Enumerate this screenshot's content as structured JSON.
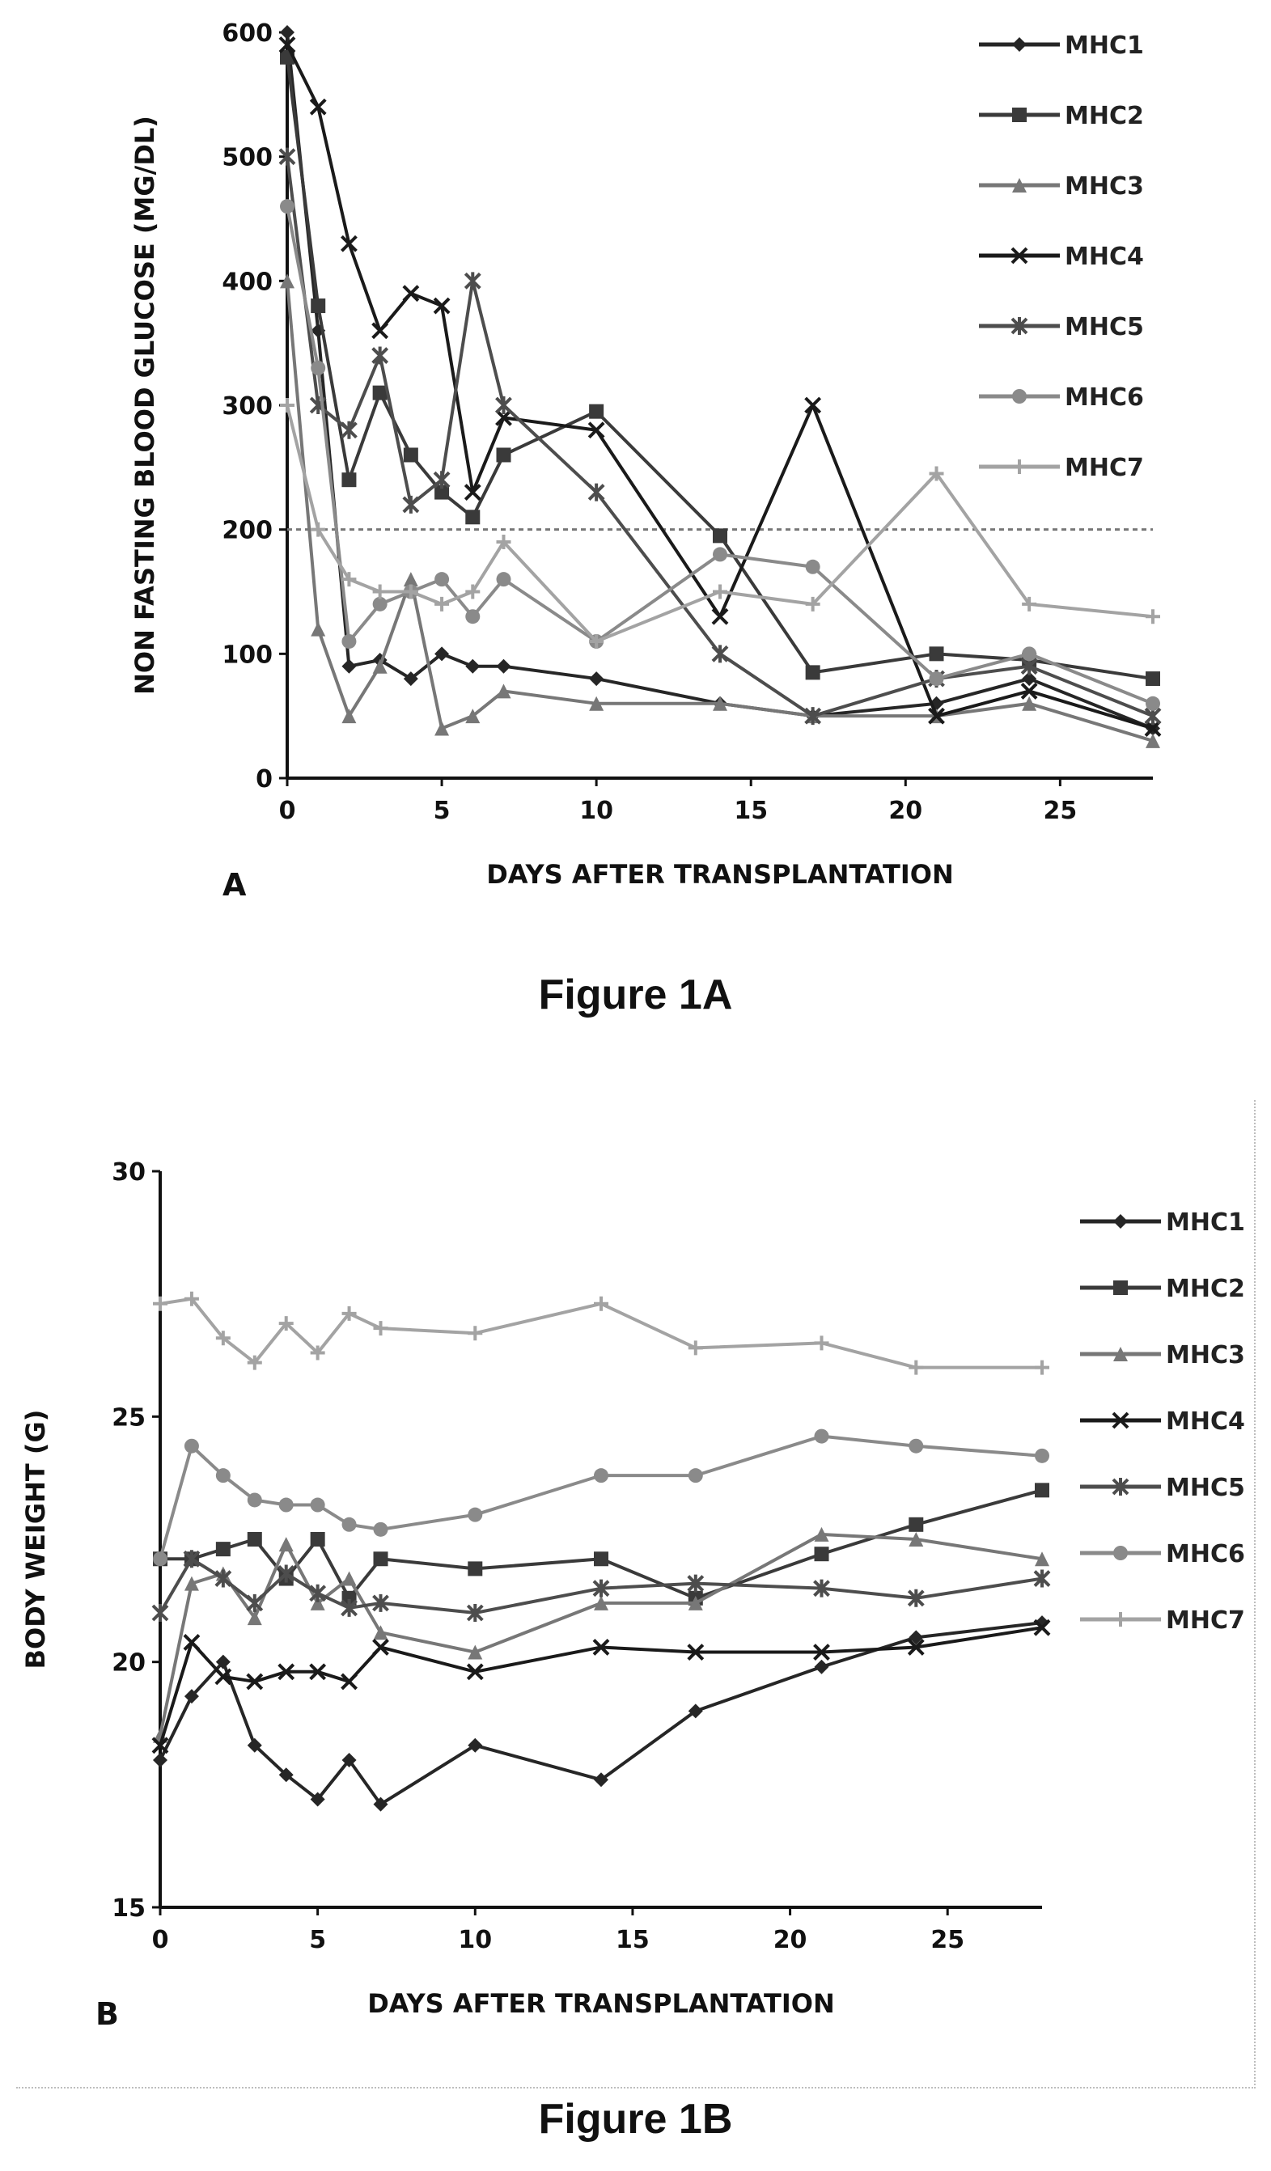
{
  "figures": [
    {
      "panel_letter": "A",
      "caption": "Figure 1A",
      "legend_entries": [
        "MHC1",
        "MHC2",
        "MHC3",
        "MHC4",
        "MHC5",
        "MHC6",
        "MHC7"
      ]
    },
    {
      "panel_letter": "B",
      "caption": "Figure 1B",
      "legend_entries": [
        "MHC1",
        "MHC2",
        "MHC3",
        "MHC4",
        "MHC5",
        "MHC6",
        "MHC7"
      ]
    }
  ],
  "chart_data": [
    {
      "type": "line",
      "title": "",
      "xlabel": "DAYS AFTER TRANSPLANTATION",
      "ylabel": "NON FASTING BLOOD GLUCOSE (MG/DL)",
      "xlim": [
        0,
        28
      ],
      "ylim": [
        0,
        600
      ],
      "xticks": [
        0,
        5,
        10,
        15,
        20,
        25
      ],
      "yticks": [
        0,
        100,
        200,
        300,
        400,
        500,
        600
      ],
      "threshold_line": 200,
      "grid": false,
      "legend_position": "right",
      "series": [
        {
          "name": "MHC1",
          "marker": "diamond",
          "color": "#262626",
          "x": [
            0,
            1,
            2,
            3,
            4,
            5,
            6,
            7,
            10,
            14,
            17,
            21,
            24,
            28
          ],
          "y": [
            600,
            360,
            90,
            95,
            80,
            100,
            90,
            90,
            80,
            60,
            50,
            60,
            80,
            40
          ]
        },
        {
          "name": "MHC2",
          "marker": "square",
          "color": "#3a3a3a",
          "x": [
            0,
            1,
            2,
            3,
            4,
            5,
            6,
            7,
            10,
            14,
            17,
            21,
            24,
            28
          ],
          "y": [
            580,
            380,
            240,
            310,
            260,
            230,
            210,
            260,
            295,
            195,
            85,
            100,
            95,
            80
          ]
        },
        {
          "name": "MHC3",
          "marker": "triangle",
          "color": "#777777",
          "x": [
            0,
            1,
            2,
            3,
            4,
            5,
            6,
            7,
            10,
            14,
            17,
            21,
            24,
            28
          ],
          "y": [
            400,
            120,
            50,
            90,
            160,
            40,
            50,
            70,
            60,
            60,
            50,
            50,
            60,
            30
          ]
        },
        {
          "name": "MHC4",
          "marker": "x",
          "color": "#1a1a1a",
          "x": [
            0,
            1,
            2,
            3,
            4,
            5,
            6,
            7,
            10,
            14,
            17,
            21,
            24,
            28
          ],
          "y": [
            590,
            540,
            430,
            360,
            390,
            380,
            230,
            290,
            280,
            130,
            300,
            50,
            70,
            40
          ]
        },
        {
          "name": "MHC5",
          "marker": "star",
          "color": "#4d4d4d",
          "x": [
            0,
            1,
            2,
            3,
            4,
            5,
            6,
            7,
            10,
            14,
            17,
            21,
            24,
            28
          ],
          "y": [
            500,
            300,
            280,
            340,
            220,
            240,
            400,
            300,
            230,
            100,
            50,
            80,
            90,
            50
          ]
        },
        {
          "name": "MHC6",
          "marker": "circle",
          "color": "#8a8a8a",
          "x": [
            0,
            1,
            2,
            3,
            4,
            5,
            6,
            7,
            10,
            14,
            17,
            21,
            24,
            28
          ],
          "y": [
            460,
            330,
            110,
            140,
            150,
            160,
            130,
            160,
            110,
            180,
            170,
            80,
            100,
            60
          ]
        },
        {
          "name": "MHC7",
          "marker": "plus",
          "color": "#a3a3a3",
          "x": [
            0,
            1,
            2,
            3,
            4,
            5,
            6,
            7,
            10,
            14,
            17,
            21,
            24,
            28
          ],
          "y": [
            300,
            200,
            160,
            150,
            150,
            140,
            150,
            190,
            110,
            150,
            140,
            245,
            140,
            130
          ]
        }
      ]
    },
    {
      "type": "line",
      "title": "",
      "xlabel": "DAYS AFTER TRANSPLANTATION",
      "ylabel": "BODY WEIGHT (G)",
      "xlim": [
        0,
        28
      ],
      "ylim": [
        15,
        30
      ],
      "xticks": [
        0,
        5,
        10,
        15,
        20,
        25
      ],
      "yticks": [
        15,
        20,
        25,
        30
      ],
      "grid": false,
      "legend_position": "right",
      "series": [
        {
          "name": "MHC1",
          "marker": "diamond",
          "color": "#262626",
          "x": [
            0,
            1,
            2,
            3,
            4,
            5,
            6,
            7,
            10,
            14,
            17,
            21,
            24,
            28
          ],
          "y": [
            18.0,
            19.3,
            20.0,
            18.3,
            17.7,
            17.2,
            18.0,
            17.1,
            18.3,
            17.6,
            19.0,
            19.9,
            20.5,
            20.8
          ]
        },
        {
          "name": "MHC2",
          "marker": "square",
          "color": "#3a3a3a",
          "x": [
            0,
            1,
            2,
            3,
            4,
            5,
            6,
            7,
            10,
            14,
            17,
            21,
            24,
            28
          ],
          "y": [
            22.1,
            22.1,
            22.3,
            22.5,
            21.7,
            22.5,
            21.3,
            22.1,
            21.9,
            22.1,
            21.3,
            22.2,
            22.8,
            23.5
          ]
        },
        {
          "name": "MHC3",
          "marker": "triangle",
          "color": "#777777",
          "x": [
            0,
            1,
            2,
            3,
            4,
            5,
            6,
            7,
            10,
            14,
            17,
            21,
            24,
            28
          ],
          "y": [
            18.5,
            21.6,
            21.8,
            20.9,
            22.4,
            21.2,
            21.7,
            20.6,
            20.2,
            21.2,
            21.2,
            22.6,
            22.5,
            22.1
          ]
        },
        {
          "name": "MHC4",
          "marker": "x",
          "color": "#1a1a1a",
          "x": [
            0,
            1,
            2,
            3,
            4,
            5,
            6,
            7,
            10,
            14,
            17,
            21,
            24,
            28
          ],
          "y": [
            18.3,
            20.4,
            19.7,
            19.6,
            19.8,
            19.8,
            19.6,
            20.3,
            19.8,
            20.3,
            20.2,
            20.2,
            20.3,
            20.7
          ]
        },
        {
          "name": "MHC5",
          "marker": "star",
          "color": "#4d4d4d",
          "x": [
            0,
            1,
            2,
            3,
            4,
            5,
            6,
            7,
            10,
            14,
            17,
            21,
            24,
            28
          ],
          "y": [
            21.0,
            22.1,
            21.7,
            21.2,
            21.8,
            21.4,
            21.1,
            21.2,
            21.0,
            21.5,
            21.6,
            21.5,
            21.3,
            21.7
          ]
        },
        {
          "name": "MHC6",
          "marker": "circle",
          "color": "#8a8a8a",
          "x": [
            0,
            1,
            2,
            3,
            4,
            5,
            6,
            7,
            10,
            14,
            17,
            21,
            24,
            28
          ],
          "y": [
            22.1,
            24.4,
            23.8,
            23.3,
            23.2,
            23.2,
            22.8,
            22.7,
            23.0,
            23.8,
            23.8,
            24.6,
            24.4,
            24.2
          ]
        },
        {
          "name": "MHC7",
          "marker": "plus",
          "color": "#a3a3a3",
          "x": [
            0,
            1,
            2,
            3,
            4,
            5,
            6,
            7,
            10,
            14,
            17,
            21,
            24,
            28
          ],
          "y": [
            27.3,
            27.4,
            26.6,
            26.1,
            26.9,
            26.3,
            27.1,
            26.8,
            26.7,
            27.3,
            26.4,
            26.5,
            26.0,
            26.0
          ]
        }
      ]
    }
  ]
}
